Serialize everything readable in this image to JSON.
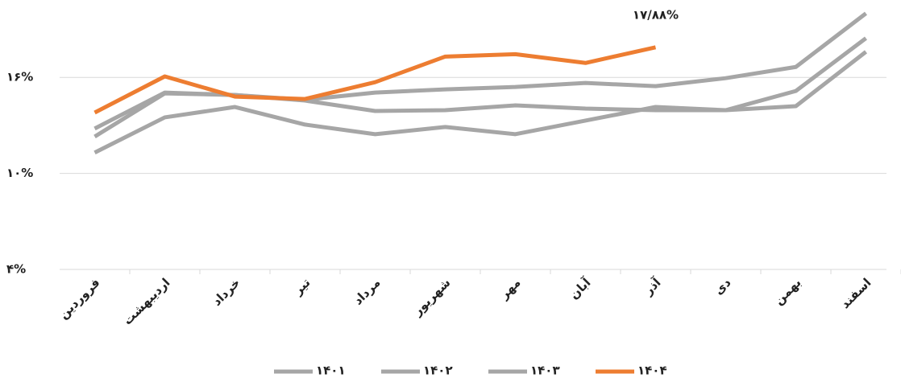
{
  "chart_data": {
    "type": "line",
    "categories": [
      "فروردین",
      "اردیبهشت",
      "خرداد",
      "تیر",
      "مرداد",
      "شهریور",
      "مهر",
      "آبان",
      "آذر",
      "دی",
      "بهمن",
      "اسفند"
    ],
    "series": [
      {
        "name": "۱۴۰۱",
        "color": "#a6a6a6",
        "values": [
          11.3,
          13.5,
          14.15,
          13.05,
          12.45,
          12.9,
          12.45,
          13.3,
          14.15,
          13.95,
          14.2,
          17.6
        ]
      },
      {
        "name": "۱۴۰۲",
        "color": "#a6a6a6",
        "values": [
          12.3,
          15.0,
          14.9,
          14.55,
          13.9,
          13.95,
          14.25,
          14.05,
          13.95,
          13.95,
          15.15,
          18.45
        ]
      },
      {
        "name": "۱۴۰۳",
        "color": "#a6a6a6",
        "values": [
          12.8,
          15.05,
          14.9,
          14.6,
          15.05,
          15.25,
          15.4,
          15.65,
          15.45,
          15.95,
          16.65,
          20
        ]
      },
      {
        "name": "۱۴۰۴",
        "color": "#ed7d31",
        "values": [
          13.8,
          16.06,
          14.8,
          14.65,
          15.7,
          17.3,
          17.45,
          16.9,
          17.88,
          null,
          null,
          null
        ]
      }
    ],
    "annotation": "۱۷/۸۸%",
    "ylim": [
      4,
      20
    ],
    "yticks": [
      {
        "value": 4,
        "label": "۴%"
      },
      {
        "value": 10,
        "label": "۱۰%"
      },
      {
        "value": 16,
        "label": "۱۶%"
      }
    ],
    "grid": true
  }
}
